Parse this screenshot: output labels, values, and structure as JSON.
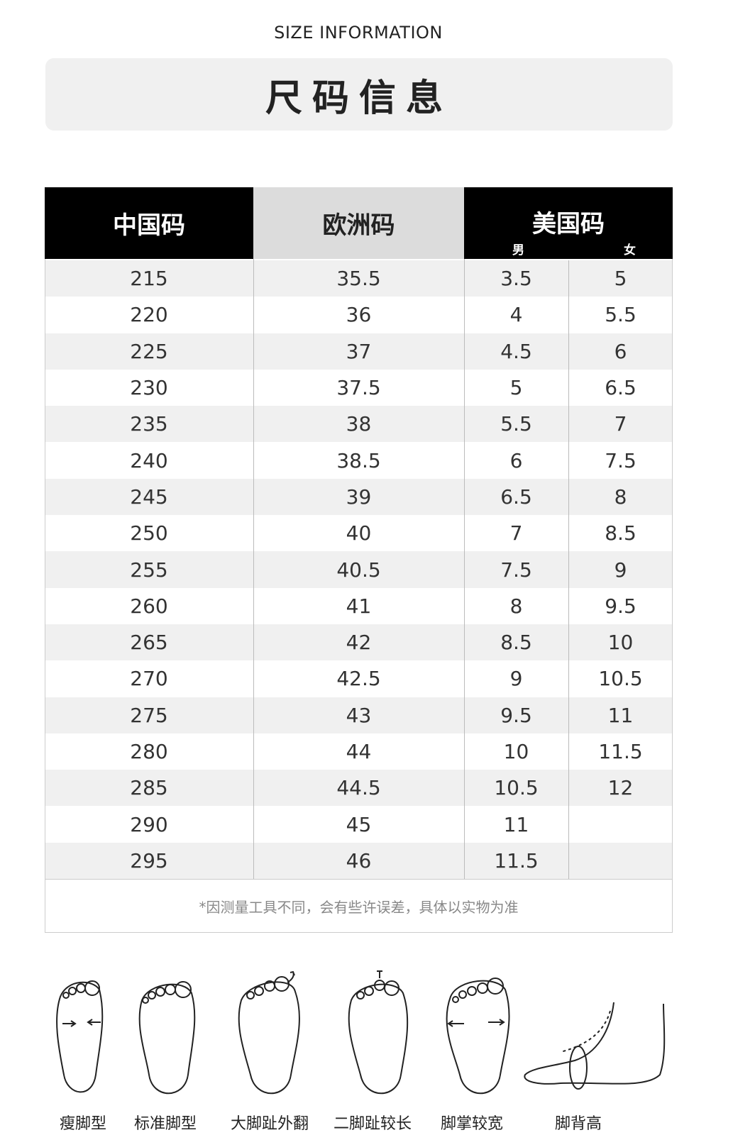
{
  "header": {
    "title_en": "SIZE INFORMATION",
    "title_cn": "尺码信息"
  },
  "table": {
    "headers": [
      "中国码",
      "欧洲码",
      "美国码"
    ],
    "subheaders": [
      "男",
      "女"
    ],
    "rows": [
      [
        "215",
        "35.5",
        "3.5",
        "5"
      ],
      [
        "220",
        "36",
        "4",
        "5.5"
      ],
      [
        "225",
        "37",
        "4.5",
        "6"
      ],
      [
        "230",
        "37.5",
        "5",
        "6.5"
      ],
      [
        "235",
        "38",
        "5.5",
        "7"
      ],
      [
        "240",
        "38.5",
        "6",
        "7.5"
      ],
      [
        "245",
        "39",
        "6.5",
        "8"
      ],
      [
        "250",
        "40",
        "7",
        "8.5"
      ],
      [
        "255",
        "40.5",
        "7.5",
        "9"
      ],
      [
        "260",
        "41",
        "8",
        "9.5"
      ],
      [
        "265",
        "42",
        "8.5",
        "10"
      ],
      [
        "270",
        "42.5",
        "9",
        "10.5"
      ],
      [
        "275",
        "43",
        "9.5",
        "11"
      ],
      [
        "280",
        "44",
        "10",
        "11.5"
      ],
      [
        "285",
        "44.5",
        "10.5",
        "12"
      ],
      [
        "290",
        "45",
        "11"
      ],
      [
        "295",
        "46",
        "11.5"
      ]
    ],
    "note": "*因测量工具不同，会有些许误差，具体以实物为准"
  },
  "foot_types": [
    "瘦脚型",
    "标准脚型",
    "大脚趾外翻",
    "二脚趾较长",
    "脚掌较宽",
    "脚背高"
  ]
}
